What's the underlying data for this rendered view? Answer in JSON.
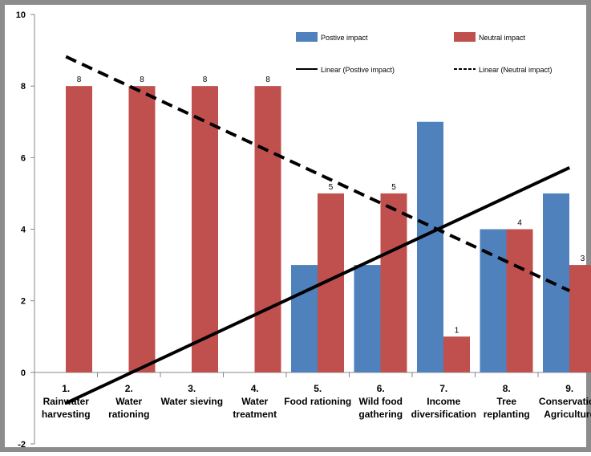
{
  "chart_data": {
    "type": "bar",
    "categories": [
      [
        "1.",
        "Rainwater",
        "harvesting"
      ],
      [
        "2.",
        "Water",
        "rationing"
      ],
      [
        "3.",
        "Water sieving"
      ],
      [
        "4.",
        "Water",
        "treatment"
      ],
      [
        "5.",
        "Food rationing"
      ],
      [
        "6.",
        "Wild food",
        "gathering"
      ],
      [
        "7.",
        "Income",
        "diversification"
      ],
      [
        "8.",
        "Tree",
        "replanting"
      ],
      [
        "9.",
        "Conservation",
        "Agriculture"
      ]
    ],
    "series": [
      {
        "name": "Postive impact",
        "color": "#4F81BD",
        "values": [
          null,
          null,
          null,
          null,
          3,
          3,
          7,
          4,
          5
        ],
        "labels": [
          null,
          null,
          null,
          null,
          null,
          null,
          null,
          null,
          null
        ]
      },
      {
        "name": "Neutral impact",
        "color": "#C0504D",
        "values": [
          8,
          8,
          8,
          8,
          5,
          5,
          1,
          4,
          3
        ],
        "labels": [
          "8",
          "8",
          "8",
          "8",
          "5",
          "5",
          "1",
          "4",
          "3"
        ]
      }
    ],
    "trendlines": [
      {
        "name": "Linear (Postive impact)",
        "style": "solid",
        "color": "#000000",
        "start": -0.86,
        "end": 5.72
      },
      {
        "name": "Linear (Neutral impact)",
        "style": "dashed",
        "color": "#000000",
        "start": 8.82,
        "end": 2.28
      }
    ],
    "y_ticks": [
      "10",
      "8",
      "6",
      "4",
      "2",
      "0",
      "-2"
    ],
    "ylim": [
      -2,
      10
    ],
    "grid": false,
    "legend_position": "top-right",
    "title": "",
    "xlabel": "",
    "ylabel": ""
  }
}
